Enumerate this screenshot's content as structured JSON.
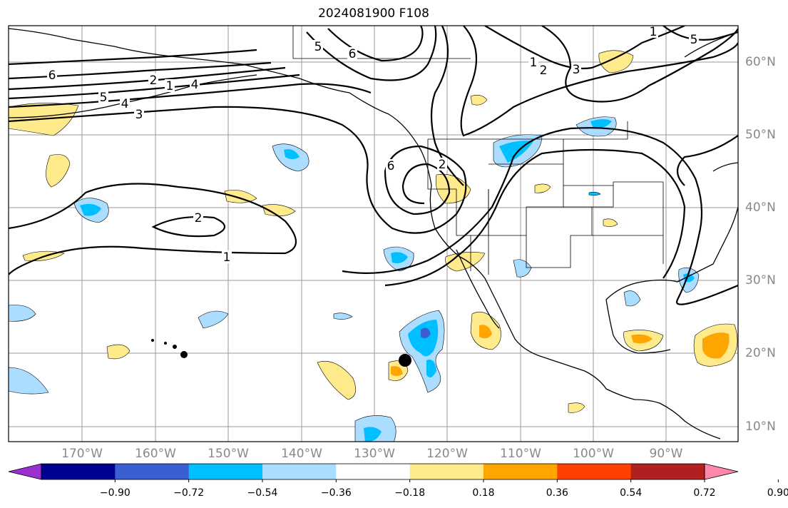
{
  "title": "2024081900 F108",
  "lon_labels": [
    "170°W",
    "160°W",
    "150°W",
    "140°W",
    "130°W",
    "120°W",
    "110°W",
    "100°W",
    "90°W"
  ],
  "lat_labels": [
    "60°N",
    "50°N",
    "40°N",
    "30°N",
    "20°N",
    "10°N"
  ],
  "colorbar": {
    "colors": [
      "#9b30d0",
      "#000090",
      "#3a5fd0",
      "#00bfff",
      "#aaddff",
      "#ffffff",
      "#ffeb8c",
      "#ffa500",
      "#ff4000",
      "#b02020",
      "#ff88aa"
    ],
    "tick_labels": [
      "−0.90",
      "−0.72",
      "−0.54",
      "−0.36",
      "−0.18",
      "0.18",
      "0.36",
      "0.54",
      "0.72",
      "0.90"
    ]
  },
  "contour_labels": [
    "6",
    "5",
    "4",
    "3",
    "2",
    "1",
    "2",
    "1",
    "5",
    "6",
    "1",
    "2",
    "3",
    "4",
    "5",
    "1",
    "2",
    "6"
  ],
  "marker": {
    "name": "storm-center-marker",
    "lon": -126,
    "lat": 19
  }
}
